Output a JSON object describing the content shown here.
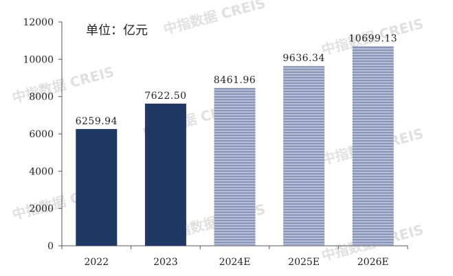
{
  "chart_data": {
    "type": "bar",
    "unit_label": "单位：亿元",
    "categories": [
      "2022",
      "2023",
      "2024E",
      "2025E",
      "2026E"
    ],
    "values": [
      6259.94,
      7622.5,
      8461.96,
      9636.34,
      10699.13
    ],
    "value_labels": [
      "6259.94",
      "7622.50",
      "8461.96",
      "9636.34",
      "10699.13"
    ],
    "forecast": [
      false,
      false,
      true,
      true,
      true
    ],
    "ylim": [
      0,
      12000
    ],
    "yticks": [
      "0",
      "2000",
      "4000",
      "6000",
      "8000",
      "10000",
      "12000"
    ],
    "grid": false,
    "colors": {
      "actual": "#1f3864",
      "forecast": "#8a96b8",
      "forecast_stripe": "#f2f4f8"
    }
  },
  "watermark": "中指数据 CREIS"
}
